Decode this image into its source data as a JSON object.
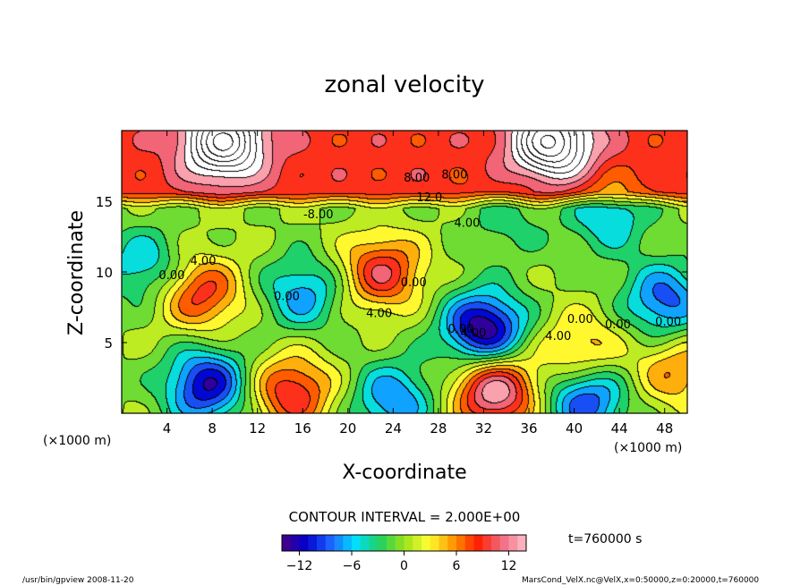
{
  "chart_data": {
    "type": "heatmap",
    "title": "zonal velocity",
    "xlabel": "X-coordinate",
    "ylabel": "Z-coordinate",
    "x_unit": "(×1000 m)",
    "z_unit": "(×1000 m)",
    "xlim": [
      0,
      50
    ],
    "ylim": [
      0,
      20
    ],
    "xticks": [
      4,
      8,
      12,
      16,
      20,
      24,
      28,
      32,
      36,
      40,
      44,
      48
    ],
    "yticks": [
      5,
      10,
      15
    ],
    "contour_interval": "CONTOUR INTERVAL = 2.000E+00",
    "colorbar": {
      "range": [
        -14,
        14
      ],
      "ticks": [
        -12,
        -6,
        0,
        6,
        12
      ],
      "stops": [
        "#4b0082",
        "#0000cd",
        "#1e64ff",
        "#00e0ff",
        "#20d060",
        "#9ae21a",
        "#ffff33",
        "#ff9900",
        "#ff2000",
        "#f06a80",
        "#ffc0c8"
      ]
    },
    "features": [
      {
        "x": 7,
        "z": 8.5,
        "v": 9
      },
      {
        "x": 7.5,
        "z": 2,
        "v": -12
      },
      {
        "x": 2,
        "z": 10.5,
        "v": -6
      },
      {
        "x": 16,
        "z": 8.5,
        "v": -7
      },
      {
        "x": 15,
        "z": 1.5,
        "v": 10
      },
      {
        "x": 23,
        "z": 10,
        "v": 10
      },
      {
        "x": 24,
        "z": 1,
        "v": -8
      },
      {
        "x": 32,
        "z": 6,
        "v": -14
      },
      {
        "x": 33,
        "z": 1.5,
        "v": 14
      },
      {
        "x": 40.5,
        "z": 4.5,
        "v": 6
      },
      {
        "x": 41,
        "z": 1,
        "v": -10
      },
      {
        "x": 48,
        "z": 8,
        "v": -9
      },
      {
        "x": 49,
        "z": 3,
        "v": 6
      },
      {
        "x": 9,
        "z": 19.2,
        "v": 15
      },
      {
        "x": 38,
        "z": 19.2,
        "v": 15
      },
      {
        "x": 34,
        "z": 13.5,
        "v": -3
      },
      {
        "x": 43,
        "z": 14,
        "v": -6
      }
    ],
    "contour_labels": [
      "-8.00",
      "12.0",
      "8.00",
      "8.00",
      "4.00",
      "4.00",
      "0.00",
      "0.00",
      "4.00",
      "0.00",
      "4.00",
      "0.00",
      "0.00",
      "4.00",
      "0.00",
      "0.00"
    ]
  },
  "annotations": {
    "time": "t=760000 s",
    "footer_left": "/usr/bin/gpview  2008-11-20",
    "footer_right": "MarsCond_VelX.nc@VelX,x=0:50000,z=0:20000,t=760000"
  }
}
